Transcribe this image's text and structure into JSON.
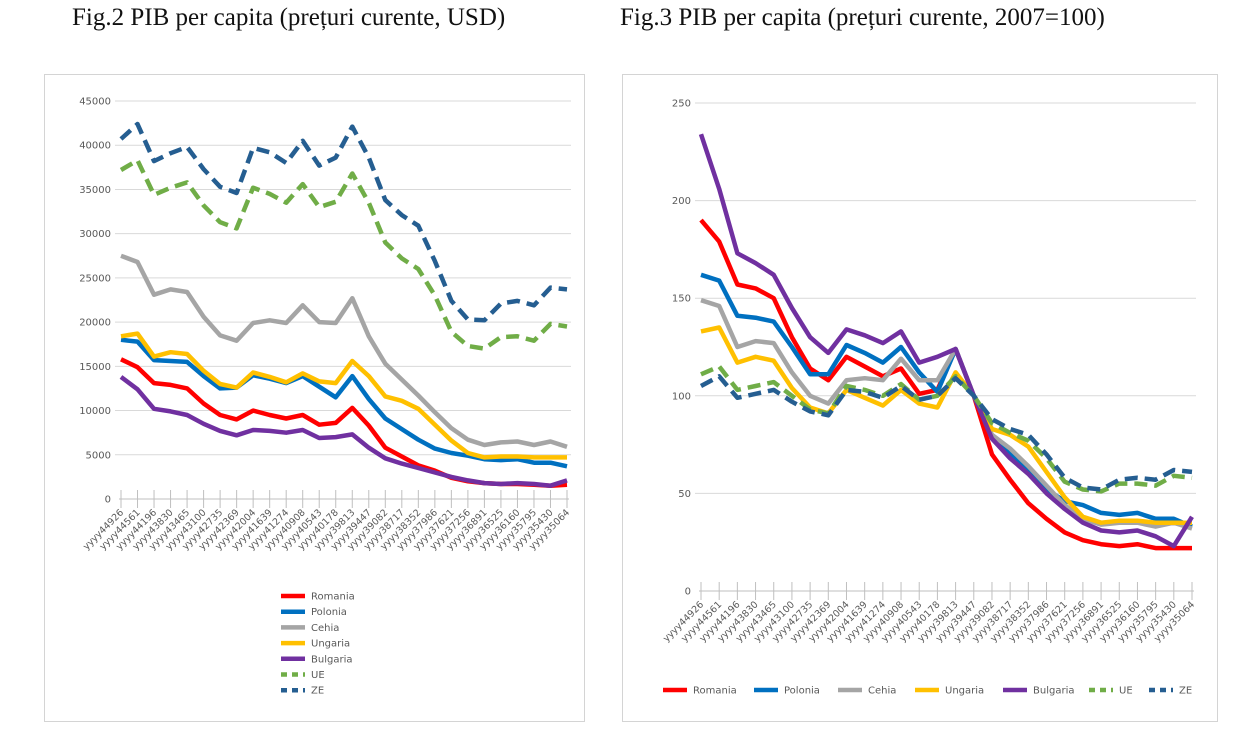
{
  "chart_data": [
    {
      "type": "line",
      "title": "Fig.2 PIB per capita (prețuri curente, USD)",
      "ylim": [
        0,
        45000
      ],
      "yticks": [
        0,
        5000,
        10000,
        15000,
        20000,
        25000,
        30000,
        35000,
        40000,
        45000
      ],
      "grid": true,
      "legend_position": "bottom",
      "categories": [
        "yyyy44926",
        "yyyy44561",
        "yyyy44196",
        "yyyy43830",
        "yyyy43465",
        "yyyy43100",
        "yyyy42735",
        "yyyy42369",
        "yyyy42004",
        "yyyy41639",
        "yyyy41274",
        "yyyy40908",
        "yyyy40543",
        "yyyy40178",
        "yyyy39813",
        "yyyy39447",
        "yyyy39082",
        "yyyy38717",
        "yyyy38352",
        "yyyy37986",
        "yyyy37621",
        "yyyy37256",
        "yyyy36891",
        "yyyy36525",
        "yyyy36160",
        "yyyy35795",
        "yyyy35430",
        "yyyy35064"
      ],
      "series": [
        {
          "name": "Romania",
          "color": "#ff0000",
          "dash": "solid",
          "values": [
            15800,
            14900,
            13100,
            12900,
            12500,
            10800,
            9500,
            9000,
            10000,
            9500,
            9100,
            9500,
            8400,
            8600,
            10300,
            8300,
            5800,
            4800,
            3800,
            3200,
            2400,
            2000,
            1800,
            1700,
            1700,
            1600,
            1500,
            1600
          ]
        },
        {
          "name": "Polonia",
          "color": "#0070c0",
          "dash": "solid",
          "values": [
            18000,
            17800,
            15700,
            15600,
            15500,
            13900,
            12500,
            12600,
            14000,
            13600,
            13100,
            13900,
            12700,
            11500,
            13900,
            11300,
            9100,
            7900,
            6700,
            5700,
            5200,
            4900,
            4500,
            4400,
            4500,
            4100,
            4100,
            3700
          ]
        },
        {
          "name": "Cehia",
          "color": "#a5a5a5",
          "dash": "solid",
          "values": [
            27500,
            26800,
            23100,
            23700,
            23400,
            20600,
            18500,
            17900,
            19900,
            20200,
            19900,
            21900,
            20000,
            19900,
            22700,
            18400,
            15300,
            13500,
            11700,
            9800,
            8000,
            6700,
            6100,
            6400,
            6500,
            6100,
            6500,
            5900
          ]
        },
        {
          "name": "Ungaria",
          "color": "#ffc000",
          "dash": "solid",
          "values": [
            18400,
            18700,
            16100,
            16600,
            16400,
            14500,
            13000,
            12600,
            14300,
            13800,
            13200,
            14200,
            13300,
            13100,
            15600,
            13900,
            11600,
            11100,
            10200,
            8400,
            6600,
            5200,
            4700,
            4800,
            4800,
            4700,
            4700,
            4700
          ]
        },
        {
          "name": "Bulgaria",
          "color": "#7030a0",
          "dash": "solid",
          "values": [
            13800,
            12400,
            10200,
            9900,
            9500,
            8500,
            7700,
            7200,
            7800,
            7700,
            7500,
            7800,
            6900,
            7000,
            7300,
            5800,
            4600,
            4000,
            3500,
            3000,
            2500,
            2100,
            1800,
            1700,
            1800,
            1700,
            1500,
            2100
          ]
        },
        {
          "name": "UE",
          "color": "#70ad47",
          "dash": "dashed",
          "values": [
            37200,
            38300,
            34400,
            35200,
            35800,
            33200,
            31300,
            30600,
            35200,
            34500,
            33500,
            35600,
            33000,
            33600,
            36800,
            33500,
            29000,
            27200,
            26000,
            23000,
            18900,
            17300,
            17000,
            18300,
            18400,
            17900,
            19800,
            19500
          ]
        },
        {
          "name": "ZE",
          "color": "#255e91",
          "dash": "dashed",
          "values": [
            40700,
            42400,
            38200,
            39100,
            39800,
            37300,
            35300,
            34600,
            39700,
            39200,
            38000,
            40500,
            37700,
            38600,
            42100,
            38600,
            33800,
            32100,
            30900,
            26900,
            22400,
            20300,
            20200,
            22100,
            22400,
            21900,
            23900,
            23700
          ]
        }
      ]
    },
    {
      "type": "line",
      "title": "Fig.3 PIB per capita (prețuri curente, 2007=100)",
      "ylim": [
        0,
        250
      ],
      "yticks": [
        0,
        50,
        100,
        150,
        200,
        250
      ],
      "grid": true,
      "legend_position": "bottom",
      "categories": [
        "yyyy44926",
        "yyyy44561",
        "yyyy44196",
        "yyyy43830",
        "yyyy43465",
        "yyyy43100",
        "yyyy42735",
        "yyyy42369",
        "yyyy42004",
        "yyyy41639",
        "yyyy41274",
        "yyyy40908",
        "yyyy40543",
        "yyyy40178",
        "yyyy39813",
        "yyyy39447",
        "yyyy39082",
        "yyyy38717",
        "yyyy38352",
        "yyyy37986",
        "yyyy37621",
        "yyyy37256",
        "yyyy36891",
        "yyyy36525",
        "yyyy36160",
        "yyyy35795",
        "yyyy35430",
        "yyyy35064"
      ],
      "series": [
        {
          "name": "Romania",
          "color": "#ff0000",
          "dash": "solid",
          "values": [
            190,
            179,
            157,
            155,
            150,
            130,
            114,
            108,
            120,
            115,
            110,
            114,
            101,
            103,
            124,
            100,
            70,
            57,
            45,
            37,
            30,
            26,
            24,
            23,
            24,
            22,
            22,
            22
          ]
        },
        {
          "name": "Polonia",
          "color": "#0070c0",
          "dash": "solid",
          "values": [
            162,
            159,
            141,
            140,
            138,
            125,
            111,
            111,
            126,
            122,
            117,
            125,
            112,
            102,
            124,
            100,
            79,
            71,
            61,
            52,
            46,
            44,
            40,
            39,
            40,
            37,
            37,
            33
          ]
        },
        {
          "name": "Cehia",
          "color": "#a5a5a5",
          "dash": "solid",
          "values": [
            149,
            146,
            125,
            128,
            127,
            112,
            100,
            96,
            108,
            109,
            108,
            119,
            108,
            108,
            124,
            100,
            80,
            73,
            64,
            54,
            44,
            37,
            34,
            35,
            35,
            33,
            35,
            32
          ]
        },
        {
          "name": "Ungaria",
          "color": "#ffc000",
          "dash": "solid",
          "values": [
            133,
            135,
            117,
            120,
            118,
            104,
            94,
            91,
            103,
            99,
            95,
            103,
            96,
            94,
            112,
            100,
            83,
            80,
            74,
            61,
            48,
            38,
            35,
            36,
            36,
            35,
            35,
            35
          ]
        },
        {
          "name": "Bulgaria",
          "color": "#7030a0",
          "dash": "solid",
          "values": [
            234,
            206,
            173,
            168,
            162,
            145,
            130,
            122,
            134,
            131,
            127,
            133,
            117,
            120,
            124,
            100,
            78,
            68,
            60,
            50,
            42,
            35,
            31,
            30,
            31,
            28,
            23,
            38
          ]
        },
        {
          "name": "UE",
          "color": "#70ad47",
          "dash": "dashed",
          "values": [
            111,
            115,
            103,
            105,
            107,
            100,
            93,
            91,
            105,
            103,
            100,
            106,
            98,
            100,
            110,
            100,
            86,
            81,
            77,
            68,
            56,
            52,
            51,
            55,
            55,
            54,
            59,
            58
          ]
        },
        {
          "name": "ZE",
          "color": "#255e91",
          "dash": "dashed",
          "values": [
            105,
            110,
            99,
            101,
            103,
            97,
            92,
            90,
            103,
            102,
            99,
            105,
            98,
            100,
            109,
            100,
            88,
            83,
            80,
            70,
            58,
            53,
            52,
            57,
            58,
            57,
            62,
            61
          ]
        }
      ]
    }
  ]
}
